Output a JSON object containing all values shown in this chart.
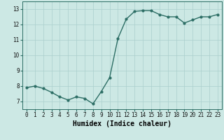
{
  "x": [
    0,
    1,
    2,
    3,
    4,
    5,
    6,
    7,
    8,
    9,
    10,
    11,
    12,
    13,
    14,
    15,
    16,
    17,
    18,
    19,
    20,
    21,
    22,
    23
  ],
  "y": [
    7.9,
    8.0,
    7.85,
    7.6,
    7.3,
    7.1,
    7.3,
    7.2,
    6.85,
    7.65,
    8.55,
    11.1,
    12.35,
    12.85,
    12.9,
    12.9,
    12.65,
    12.5,
    12.5,
    12.1,
    12.3,
    12.5,
    12.5,
    12.65
  ],
  "line_color": "#2d6e65",
  "marker": "o",
  "markersize": 2.0,
  "linewidth": 1.0,
  "xlabel": "Humidex (Indice chaleur)",
  "xlim": [
    -0.5,
    23.5
  ],
  "ylim": [
    6.5,
    13.5
  ],
  "yticks": [
    7,
    8,
    9,
    10,
    11,
    12,
    13
  ],
  "xticks": [
    0,
    1,
    2,
    3,
    4,
    5,
    6,
    7,
    8,
    9,
    10,
    11,
    12,
    13,
    14,
    15,
    16,
    17,
    18,
    19,
    20,
    21,
    22,
    23
  ],
  "bg_color": "#cce8e4",
  "grid_color": "#aacfcc",
  "tick_label_fontsize": 5.5,
  "xlabel_fontsize": 7.0
}
